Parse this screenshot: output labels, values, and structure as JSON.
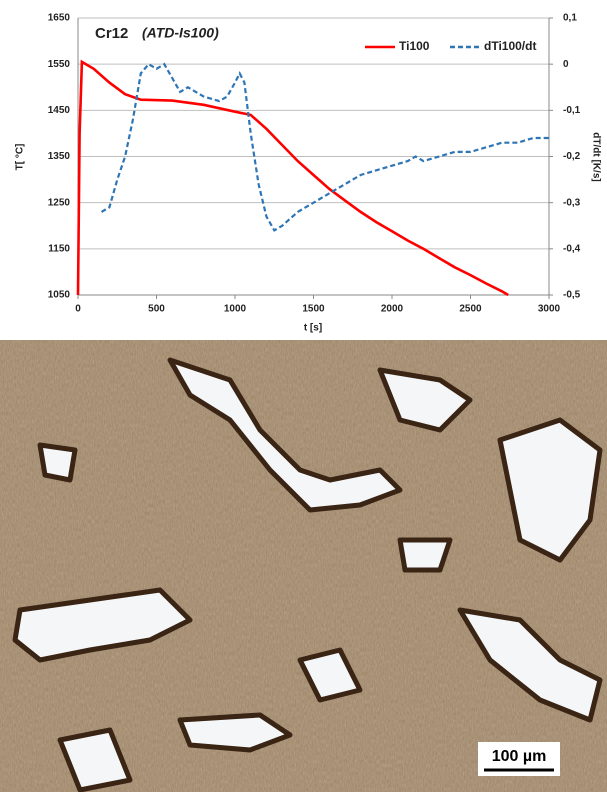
{
  "chart_data": {
    "type": "line",
    "title": "Cr12",
    "subtitle": "(ATD-Is100)",
    "x_label": "t [s]",
    "y_label": "T[ °C]",
    "y2_label": "dT/dt [K/s]",
    "xlim": [
      0,
      3000
    ],
    "xticks": [
      0,
      500,
      1000,
      1500,
      2000,
      2500,
      3000
    ],
    "ylim": [
      1050,
      1650
    ],
    "yticks": [
      1050,
      1150,
      1250,
      1350,
      1450,
      1550,
      1650
    ],
    "y2lim": [
      -0.5,
      0.1
    ],
    "y2ticks": [
      {
        "value": -0.5,
        "label": "-0,5"
      },
      {
        "value": -0.4,
        "label": "-0,4"
      },
      {
        "value": -0.3,
        "label": "-0,3"
      },
      {
        "value": -0.2,
        "label": "-0,2"
      },
      {
        "value": -0.1,
        "label": "-0,1"
      },
      0,
      {
        "value": 0.1,
        "label": "0,1"
      }
    ],
    "grid": true,
    "legend": "top-right",
    "series": [
      {
        "name": "Ti100",
        "color": "#ff0000",
        "style": "solid",
        "x": [
          0,
          10,
          25,
          100,
          200,
          300,
          400,
          600,
          800,
          1000,
          1100,
          1200,
          1300,
          1400,
          1500,
          1600,
          1700,
          1800,
          1900,
          2000,
          2100,
          2200,
          2300,
          2400,
          2500,
          2600,
          2700,
          2740
        ],
        "values": [
          1050,
          1400,
          1555,
          1540,
          1510,
          1485,
          1473,
          1471,
          1462,
          1447,
          1440,
          1410,
          1375,
          1340,
          1310,
          1280,
          1255,
          1230,
          1208,
          1188,
          1168,
          1150,
          1130,
          1110,
          1093,
          1075,
          1058,
          1050
        ]
      },
      {
        "name": "dTi100/dt",
        "color": "#2e75b6",
        "style": "dashed",
        "axis": "y2",
        "x": [
          150,
          200,
          250,
          300,
          350,
          400,
          450,
          500,
          550,
          600,
          650,
          700,
          800,
          900,
          950,
          1000,
          1030,
          1060,
          1100,
          1150,
          1200,
          1250,
          1300,
          1400,
          1500,
          1600,
          1700,
          1800,
          1900,
          2000,
          2100,
          2150,
          2200,
          2300,
          2400,
          2500,
          2600,
          2700,
          2800,
          2900,
          3000
        ],
        "values": [
          -0.32,
          -0.31,
          -0.25,
          -0.2,
          -0.12,
          -0.02,
          0,
          -0.01,
          0,
          -0.03,
          -0.06,
          -0.05,
          -0.07,
          -0.08,
          -0.07,
          -0.04,
          -0.02,
          -0.04,
          -0.15,
          -0.26,
          -0.33,
          -0.36,
          -0.35,
          -0.32,
          -0.3,
          -0.28,
          -0.26,
          -0.24,
          -0.23,
          -0.22,
          -0.21,
          -0.2,
          -0.21,
          -0.2,
          -0.19,
          -0.19,
          -0.18,
          -0.17,
          -0.17,
          -0.16,
          -0.16
        ]
      }
    ]
  },
  "image": {
    "scale_bar": "100 µm"
  }
}
